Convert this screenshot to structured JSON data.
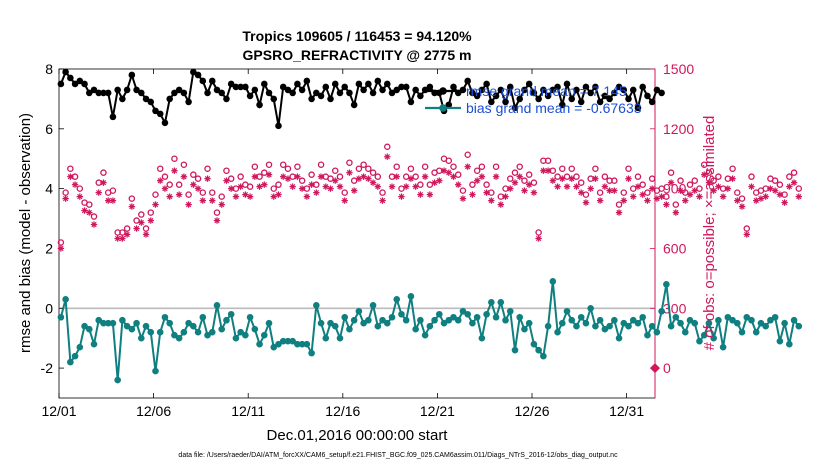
{
  "chart_data": {
    "type": "line",
    "title_line1": "Tropics 109605 / 116453 = 94.120%",
    "title_line2": "GPSRO_REFRACTIVITY @ 2775 m",
    "xlabel": "Dec.01,2016 00:00:00 start",
    "ylabel_left": "rmse and bias (model - observation)",
    "ylabel_right": "# of obs: o=possible; ×=assimilated",
    "footer": "data file: /Users/raeder/DAI/ATM_forcXX/CAM6_setup/f.e21.FHIST_BGC.f09_025.CAM6assim.011/Diags_NTrS_2016-12/obs_diag_output.nc",
    "x_ticks": [
      "12/01",
      "12/06",
      "12/11",
      "12/16",
      "12/21",
      "12/26",
      "12/31"
    ],
    "x_tick_days": [
      0,
      5,
      10,
      15,
      20,
      25,
      30
    ],
    "x_range_days": [
      0,
      31.5
    ],
    "y_left_range": [
      -3,
      8
    ],
    "y_left_ticks": [
      "-2",
      "0",
      "2",
      "4",
      "6",
      "8"
    ],
    "y_right_range": [
      -150,
      1500
    ],
    "y_right_ticks": [
      "0",
      "300",
      "600",
      "900",
      "1200",
      "1500"
    ],
    "colors": {
      "rmse": "#000000",
      "bias": "#0f7f80",
      "obs": "#d0175c",
      "legend_text": "#1a4fd6",
      "zero_line": "#bbbbbb"
    },
    "legend": {
      "rmse_label": "rmse grand mean = 7.145",
      "bias_label": "bias grand mean = -0.67633",
      "placement": "top-right"
    },
    "step_days": 0.25,
    "series": [
      {
        "name": "rmse",
        "values": [
          7.5,
          7.9,
          7.7,
          7.5,
          7.6,
          7.5,
          7.2,
          7.3,
          7.2,
          7.2,
          7.2,
          6.4,
          7.3,
          7.0,
          7.3,
          7.8,
          7.3,
          7.2,
          7.0,
          6.9,
          6.6,
          6.5,
          6.2,
          7.0,
          7.2,
          7.3,
          7.2,
          6.9,
          7.9,
          7.8,
          7.6,
          7.2,
          7.6,
          7.3,
          7.2,
          7.0,
          7.5,
          7.4,
          7.4,
          7.4,
          7.1,
          7.3,
          6.8,
          7.5,
          7.2,
          7.0,
          6.1,
          7.4,
          7.3,
          7.2,
          7.5,
          7.3,
          7.6,
          7.0,
          7.2,
          7.1,
          7.4,
          7.0,
          7.5,
          7.2,
          7.4,
          7.2,
          6.8,
          7.5,
          7.3,
          7.5,
          7.2,
          7.6,
          7.3,
          7.5,
          7.2,
          7.3,
          7.4,
          7.4,
          6.9,
          7.3,
          7.1,
          7.3,
          7.4,
          7.2,
          7.2,
          6.6,
          6.8,
          7.4,
          7.2,
          7.3,
          7.6,
          7.2,
          7.1,
          7.3,
          7.5,
          6.9,
          7.1,
          7.3,
          6.9,
          7.4,
          6.7,
          7.0,
          7.3,
          7.5,
          7.2,
          7.0,
          7.3,
          7.1,
          7.3,
          7.4,
          6.8,
          7.5,
          7.0,
          7.3,
          6.9,
          7.4,
          7.2,
          7.4,
          6.9,
          7.1,
          7.0,
          7.2,
          7.4,
          7.3,
          7.0,
          7.3,
          6.7,
          7.4,
          7.1,
          6.9,
          7.3,
          7.2
        ],
        "marker": "filled-circle"
      },
      {
        "name": "bias",
        "values": [
          -0.3,
          0.3,
          -1.8,
          -1.6,
          -1.3,
          -0.6,
          -0.7,
          -1.2,
          -0.4,
          -0.5,
          -0.5,
          -0.5,
          -2.4,
          -0.4,
          -0.6,
          -0.7,
          -0.5,
          -1.0,
          -0.6,
          -0.8,
          -2.1,
          -0.8,
          -0.3,
          -0.5,
          -0.9,
          -1.0,
          -0.8,
          -0.5,
          -0.6,
          -0.8,
          -0.3,
          -0.9,
          -0.8,
          0.1,
          -0.7,
          -0.4,
          -0.2,
          -1.0,
          -0.8,
          -0.9,
          -0.3,
          -0.7,
          -1.2,
          -0.9,
          -0.5,
          -1.3,
          -1.2,
          -1.1,
          -1.1,
          -1.1,
          -1.2,
          -1.2,
          -1.2,
          -1.5,
          0.1,
          -0.5,
          -1.0,
          -0.5,
          -0.6,
          -1.0,
          -0.3,
          -0.7,
          -0.4,
          -0.1,
          -0.5,
          -0.4,
          0.1,
          -0.6,
          -0.4,
          -0.5,
          -0.3,
          0.3,
          -0.2,
          -0.4,
          0.4,
          -0.7,
          -0.4,
          -0.9,
          -0.6,
          -0.4,
          -0.2,
          -0.5,
          -0.4,
          -0.3,
          -0.4,
          -0.1,
          -0.2,
          -0.5,
          -0.3,
          -1.0,
          -0.2,
          0.2,
          -0.3,
          0.2,
          -0.4,
          -0.1,
          -1.4,
          -0.3,
          -0.7,
          -0.5,
          -1.2,
          -1.4,
          -1.6,
          -0.6,
          0.9,
          -0.8,
          -0.5,
          -0.1,
          -0.4,
          -0.6,
          -0.3,
          -0.5,
          0.0,
          -0.6,
          -0.4,
          -0.7,
          -0.6,
          -0.4,
          -1.0,
          -0.5,
          -0.6,
          -0.4,
          -0.5,
          -0.3,
          -0.9,
          -0.6,
          -0.8,
          -0.1,
          0.8,
          -0.6,
          -0.3,
          -0.5,
          -0.8,
          -0.4,
          -0.5,
          -1.1,
          -0.9,
          -0.5,
          -1.0,
          -0.4,
          -1.3,
          -0.3,
          -0.4,
          -0.5,
          -0.8,
          -0.3,
          -0.4,
          -0.8,
          -0.5,
          -0.6,
          -0.4,
          -0.3,
          -1.1,
          -0.5,
          -1.2,
          -0.4,
          -0.6
        ],
        "marker": "filled-circle"
      },
      {
        "name": "obs_possible",
        "values": [
          630,
          880,
          1000,
          960,
          900,
          830,
          820,
          760,
          930,
          980,
          880,
          890,
          680,
          680,
          700,
          850,
          740,
          770,
          700,
          780,
          870,
          1000,
          960,
          920,
          1050,
          920,
          1020,
          870,
          970,
          950,
          880,
          1000,
          880,
          780,
          860,
          990,
          950,
          900,
          960,
          920,
          910,
          1010,
          960,
          980,
          1020,
          900,
          920,
          1020,
          1000,
          960,
          1010,
          940,
          900,
          970,
          920,
          1020,
          960,
          950,
          990,
          960,
          880,
          1030,
          940,
          1000,
          1020,
          1000,
          980,
          960,
          880,
          1110,
          960,
          1010,
          900,
          960,
          1000,
          960,
          920,
          1010,
          920,
          980,
          990,
          1050,
          1040,
          1010,
          970,
          890,
          1070,
          920,
          990,
          1010,
          920,
          880,
          1010,
          860,
          900,
          950,
          980,
          1010,
          940,
          970,
          930,
          680,
          1040,
          1040,
          990,
          960,
          1000,
          960,
          1000,
          960,
          930,
          870,
          950,
          1000,
          880,
          960,
          940,
          940,
          820,
          880,
          1000,
          900,
          960,
          920,
          880,
          950,
          890,
          900,
          860,
          980,
          820,
          940,
          880,
          920,
          940,
          900,
          1020,
          980,
          940,
          960,
          900,
          950,
          1000,
          880,
          850,
          700,
          960,
          880,
          890,
          900,
          950,
          940,
          920,
          870,
          960,
          980,
          900
        ]
      },
      {
        "name": "obs_assimilated",
        "values": [
          600,
          850,
          960,
          920,
          860,
          790,
          780,
          720,
          880,
          930,
          840,
          840,
          650,
          650,
          670,
          810,
          700,
          730,
          670,
          740,
          820,
          940,
          900,
          860,
          990,
          870,
          960,
          820,
          920,
          900,
          840,
          950,
          840,
          740,
          820,
          940,
          900,
          860,
          910,
          870,
          860,
          960,
          910,
          920,
          970,
          860,
          870,
          960,
          950,
          910,
          960,
          900,
          860,
          920,
          880,
          960,
          910,
          900,
          940,
          910,
          840,
          980,
          890,
          950,
          960,
          950,
          930,
          910,
          840,
          1060,
          910,
          960,
          860,
          910,
          950,
          910,
          870,
          960,
          870,
          930,
          940,
          990,
          980,
          960,
          920,
          850,
          1010,
          870,
          940,
          960,
          880,
          840,
          960,
          820,
          860,
          900,
          930,
          960,
          890,
          920,
          880,
          650,
          990,
          990,
          940,
          910,
          950,
          910,
          950,
          910,
          880,
          830,
          900,
          950,
          840,
          910,
          890,
          890,
          780,
          840,
          950,
          860,
          910,
          870,
          840,
          900,
          850,
          860,
          820,
          930,
          780,
          890,
          840,
          870,
          890,
          860,
          970,
          930,
          890,
          910,
          860,
          900,
          950,
          840,
          810,
          670,
          910,
          840,
          850,
          860,
          900,
          890,
          870,
          830,
          910,
          930,
          860
        ]
      }
    ]
  }
}
